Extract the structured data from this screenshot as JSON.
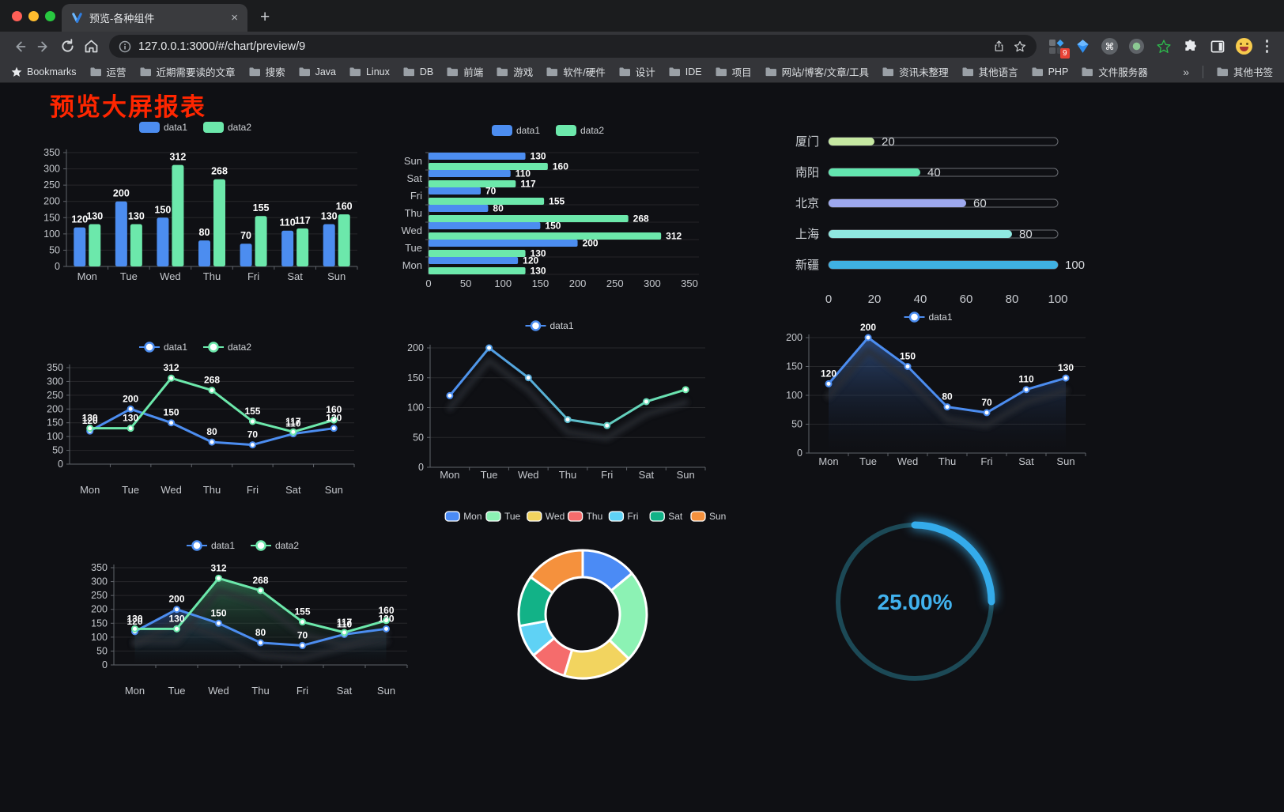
{
  "browser": {
    "tab_title": "预览-各种组件",
    "url": "127.0.0.1:3000/#/chart/preview/9",
    "traffic_lights": [
      "#ff5f57",
      "#febc2e",
      "#28c840"
    ],
    "extensions_badge": "9",
    "icons": {
      "close": "×",
      "new_tab": "+",
      "overflow": "»",
      "command": "⌘"
    },
    "bookmarks": [
      "Bookmarks",
      "运营",
      "近期需要读的文章",
      "搜索",
      "Java",
      "Linux",
      "DB",
      "前端",
      "游戏",
      "软件/硬件",
      "设计",
      "IDE",
      "项目",
      "网站/博客/文章/工具",
      "资讯未整理",
      "其他语言",
      "PHP",
      "文件服务器",
      "»",
      "其他书签"
    ]
  },
  "page": {
    "title": "预览大屏报表",
    "title_color": "#ff2600",
    "background": "#0f1014"
  },
  "chart_data": [
    {
      "id": "grouped-bar",
      "type": "bar",
      "categories": [
        "Mon",
        "Tue",
        "Wed",
        "Thu",
        "Fri",
        "Sat",
        "Sun"
      ],
      "series": [
        {
          "name": "data1",
          "color": "#4C8DF0",
          "values": [
            120,
            200,
            150,
            80,
            70,
            110,
            130
          ]
        },
        {
          "name": "data2",
          "color": "#6CE8AB",
          "values": [
            130,
            130,
            312,
            268,
            155,
            117,
            160
          ]
        }
      ],
      "ylim": [
        0,
        350
      ],
      "yticks": [
        0,
        50,
        100,
        150,
        200,
        250,
        300,
        350
      ],
      "value_labels": true,
      "legend": "swatch",
      "grid": true
    },
    {
      "id": "grouped-horizontal-bar",
      "type": "hbar",
      "categories": [
        "Mon",
        "Tue",
        "Wed",
        "Thu",
        "Fri",
        "Sat",
        "Sun"
      ],
      "series": [
        {
          "name": "data1",
          "color": "#4C8DF0",
          "values": [
            120,
            200,
            150,
            80,
            70,
            110,
            130
          ]
        },
        {
          "name": "data2",
          "color": "#6CE8AB",
          "values": [
            130,
            130,
            312,
            268,
            155,
            117,
            160
          ]
        }
      ],
      "xlim": [
        0,
        350
      ],
      "xticks": [
        0,
        50,
        100,
        150,
        200,
        250,
        300,
        350
      ],
      "value_labels": true,
      "legend": "swatch",
      "grid": true
    },
    {
      "id": "city-progress",
      "type": "progress",
      "max": 100,
      "xticks": [
        0,
        20,
        40,
        60,
        80,
        100
      ],
      "rows": [
        {
          "label": "厦门",
          "value": 20,
          "color": "#C6E8A2"
        },
        {
          "label": "南阳",
          "value": 40,
          "color": "#63E6B0"
        },
        {
          "label": "北京",
          "value": 60,
          "color": "#9DA8EE"
        },
        {
          "label": "上海",
          "value": 80,
          "color": "#8FE8E0"
        },
        {
          "label": "新疆",
          "value": 100,
          "color": "#3FB1E3"
        }
      ]
    },
    {
      "id": "line-two-series",
      "type": "line",
      "categories": [
        "Mon",
        "Tue",
        "Wed",
        "Thu",
        "Fri",
        "Sat",
        "Sun"
      ],
      "series": [
        {
          "name": "data1",
          "color": "#4C8DF0",
          "values": [
            120,
            200,
            150,
            80,
            70,
            110,
            130
          ]
        },
        {
          "name": "data2",
          "color": "#6CE8AB",
          "values": [
            130,
            130,
            312,
            268,
            155,
            117,
            160
          ]
        }
      ],
      "ylim": [
        0,
        350
      ],
      "yticks": [
        0,
        50,
        100,
        150,
        200,
        250,
        300,
        350
      ],
      "value_labels": true,
      "legend": "marker",
      "grid": true
    },
    {
      "id": "line-gradient",
      "type": "line",
      "categories": [
        "Mon",
        "Tue",
        "Wed",
        "Thu",
        "Fri",
        "Sat",
        "Sun"
      ],
      "series": [
        {
          "name": "data1",
          "color": "#4C8DF0",
          "gradient": [
            "#4C8DF0",
            "#6CE8AB"
          ],
          "values": [
            120,
            200,
            150,
            80,
            70,
            110,
            130
          ]
        }
      ],
      "ylim": [
        0,
        200
      ],
      "yticks": [
        0,
        50,
        100,
        150,
        200
      ],
      "value_labels": false,
      "legend": "marker",
      "grid": true,
      "shadow": true
    },
    {
      "id": "line-area",
      "type": "line",
      "categories": [
        "Mon",
        "Tue",
        "Wed",
        "Thu",
        "Fri",
        "Sat",
        "Sun"
      ],
      "series": [
        {
          "name": "data1",
          "color": "#4C8DF0",
          "area": [
            "rgba(62,104,172,0.62)",
            "rgba(20,30,50,0)"
          ],
          "values": [
            120,
            200,
            150,
            80,
            70,
            110,
            130
          ]
        }
      ],
      "ylim": [
        0,
        200
      ],
      "yticks": [
        0,
        50,
        100,
        150,
        200
      ],
      "value_labels": true,
      "legend": "marker",
      "grid": true,
      "shadow": true
    },
    {
      "id": "line-area-two-series",
      "type": "line",
      "categories": [
        "Mon",
        "Tue",
        "Wed",
        "Thu",
        "Fri",
        "Sat",
        "Sun"
      ],
      "series": [
        {
          "name": "data1",
          "color": "#4C8DF0",
          "area": [
            "rgba(58,104,180,0.5)",
            "rgba(20,30,50,0)"
          ],
          "values": [
            120,
            200,
            150,
            80,
            70,
            110,
            130
          ]
        },
        {
          "name": "data2",
          "color": "#6CE8AB",
          "area": [
            "rgba(70,165,115,0.55)",
            "rgba(20,40,30,0)"
          ],
          "values": [
            130,
            130,
            312,
            268,
            155,
            117,
            160
          ]
        }
      ],
      "ylim": [
        0,
        350
      ],
      "yticks": [
        0,
        50,
        100,
        150,
        200,
        250,
        300,
        350
      ],
      "value_labels": true,
      "legend": "marker",
      "grid": true,
      "shadow": true
    },
    {
      "id": "donut",
      "type": "donut",
      "slices": [
        {
          "name": "Mon",
          "value": 120,
          "color": "#4B8BF5"
        },
        {
          "name": "Tue",
          "value": 200,
          "color": "#8CF2B4"
        },
        {
          "name": "Wed",
          "value": 150,
          "color": "#F2D45F"
        },
        {
          "name": "Thu",
          "value": 80,
          "color": "#F56C6C"
        },
        {
          "name": "Fri",
          "value": 70,
          "color": "#5FD2F5"
        },
        {
          "name": "Sat",
          "value": 110,
          "color": "#12B287"
        },
        {
          "name": "Sun",
          "value": 130,
          "color": "#F5913D"
        }
      ],
      "legend": "sm"
    },
    {
      "id": "gauge",
      "type": "gauge",
      "percent": 25,
      "label": "25.00%",
      "color": "#34ABEA",
      "track": "#1C4956",
      "text_color": "#41B2EE"
    }
  ]
}
